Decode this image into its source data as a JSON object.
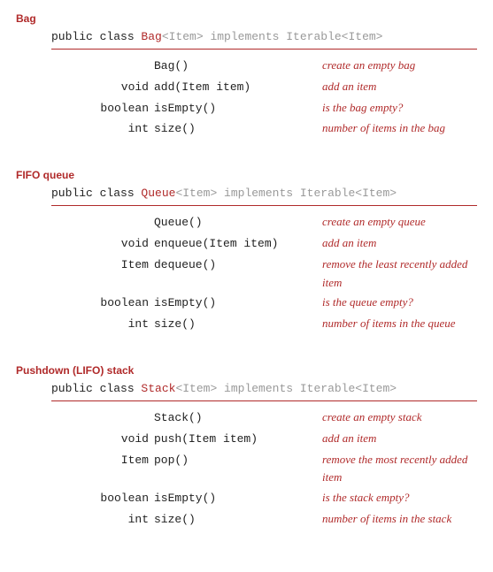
{
  "colors": {
    "accent": "#b02a2a",
    "muted": "#999999",
    "text": "#222222",
    "background": "#ffffff"
  },
  "typography": {
    "mono_font": "Consolas, Menlo, Courier New, monospace",
    "body_font": "Helvetica Neue, Arial, sans-serif",
    "italic_font": "Georgia, Times New Roman, serif",
    "body_size_pt": 10,
    "title_size_pt": 9
  },
  "sections": [
    {
      "title": "Bag",
      "decl_prefix": "public class ",
      "decl_name": "Bag",
      "decl_generic": "<Item>",
      "decl_suffix": " implements Iterable<Item>",
      "methods": [
        {
          "ret": "",
          "sig": "Bag()",
          "desc": "create an empty bag"
        },
        {
          "ret": "void",
          "sig": "add(Item item)",
          "desc": "add an item"
        },
        {
          "ret": "boolean",
          "sig": "isEmpty()",
          "desc": "is the bag empty?"
        },
        {
          "ret": "int",
          "sig": "size()",
          "desc": "number of items in the bag"
        }
      ]
    },
    {
      "title": "FIFO queue",
      "decl_prefix": "public class ",
      "decl_name": "Queue",
      "decl_generic": "<Item>",
      "decl_suffix": " implements Iterable<Item>",
      "methods": [
        {
          "ret": "",
          "sig": "Queue()",
          "desc": "create an empty queue"
        },
        {
          "ret": "void",
          "sig": "enqueue(Item item)",
          "desc": "add an item"
        },
        {
          "ret": "Item",
          "sig": "dequeue()",
          "desc": "remove the least recently added item"
        },
        {
          "ret": "boolean",
          "sig": "isEmpty()",
          "desc": "is the queue empty?"
        },
        {
          "ret": "int",
          "sig": "size()",
          "desc": "number of items in the queue"
        }
      ]
    },
    {
      "title": "Pushdown (LIFO) stack",
      "decl_prefix": "public class ",
      "decl_name": "Stack",
      "decl_generic": "<Item>",
      "decl_suffix": " implements Iterable<Item>",
      "methods": [
        {
          "ret": "",
          "sig": "Stack()",
          "desc": "create an empty stack"
        },
        {
          "ret": "void",
          "sig": "push(Item item)",
          "desc": "add an item"
        },
        {
          "ret": "Item",
          "sig": "pop()",
          "desc": "remove the most recently added item"
        },
        {
          "ret": "boolean",
          "sig": "isEmpty()",
          "desc": "is the stack empty?"
        },
        {
          "ret": "int",
          "sig": "size()",
          "desc": "number of items in the stack"
        }
      ]
    }
  ]
}
